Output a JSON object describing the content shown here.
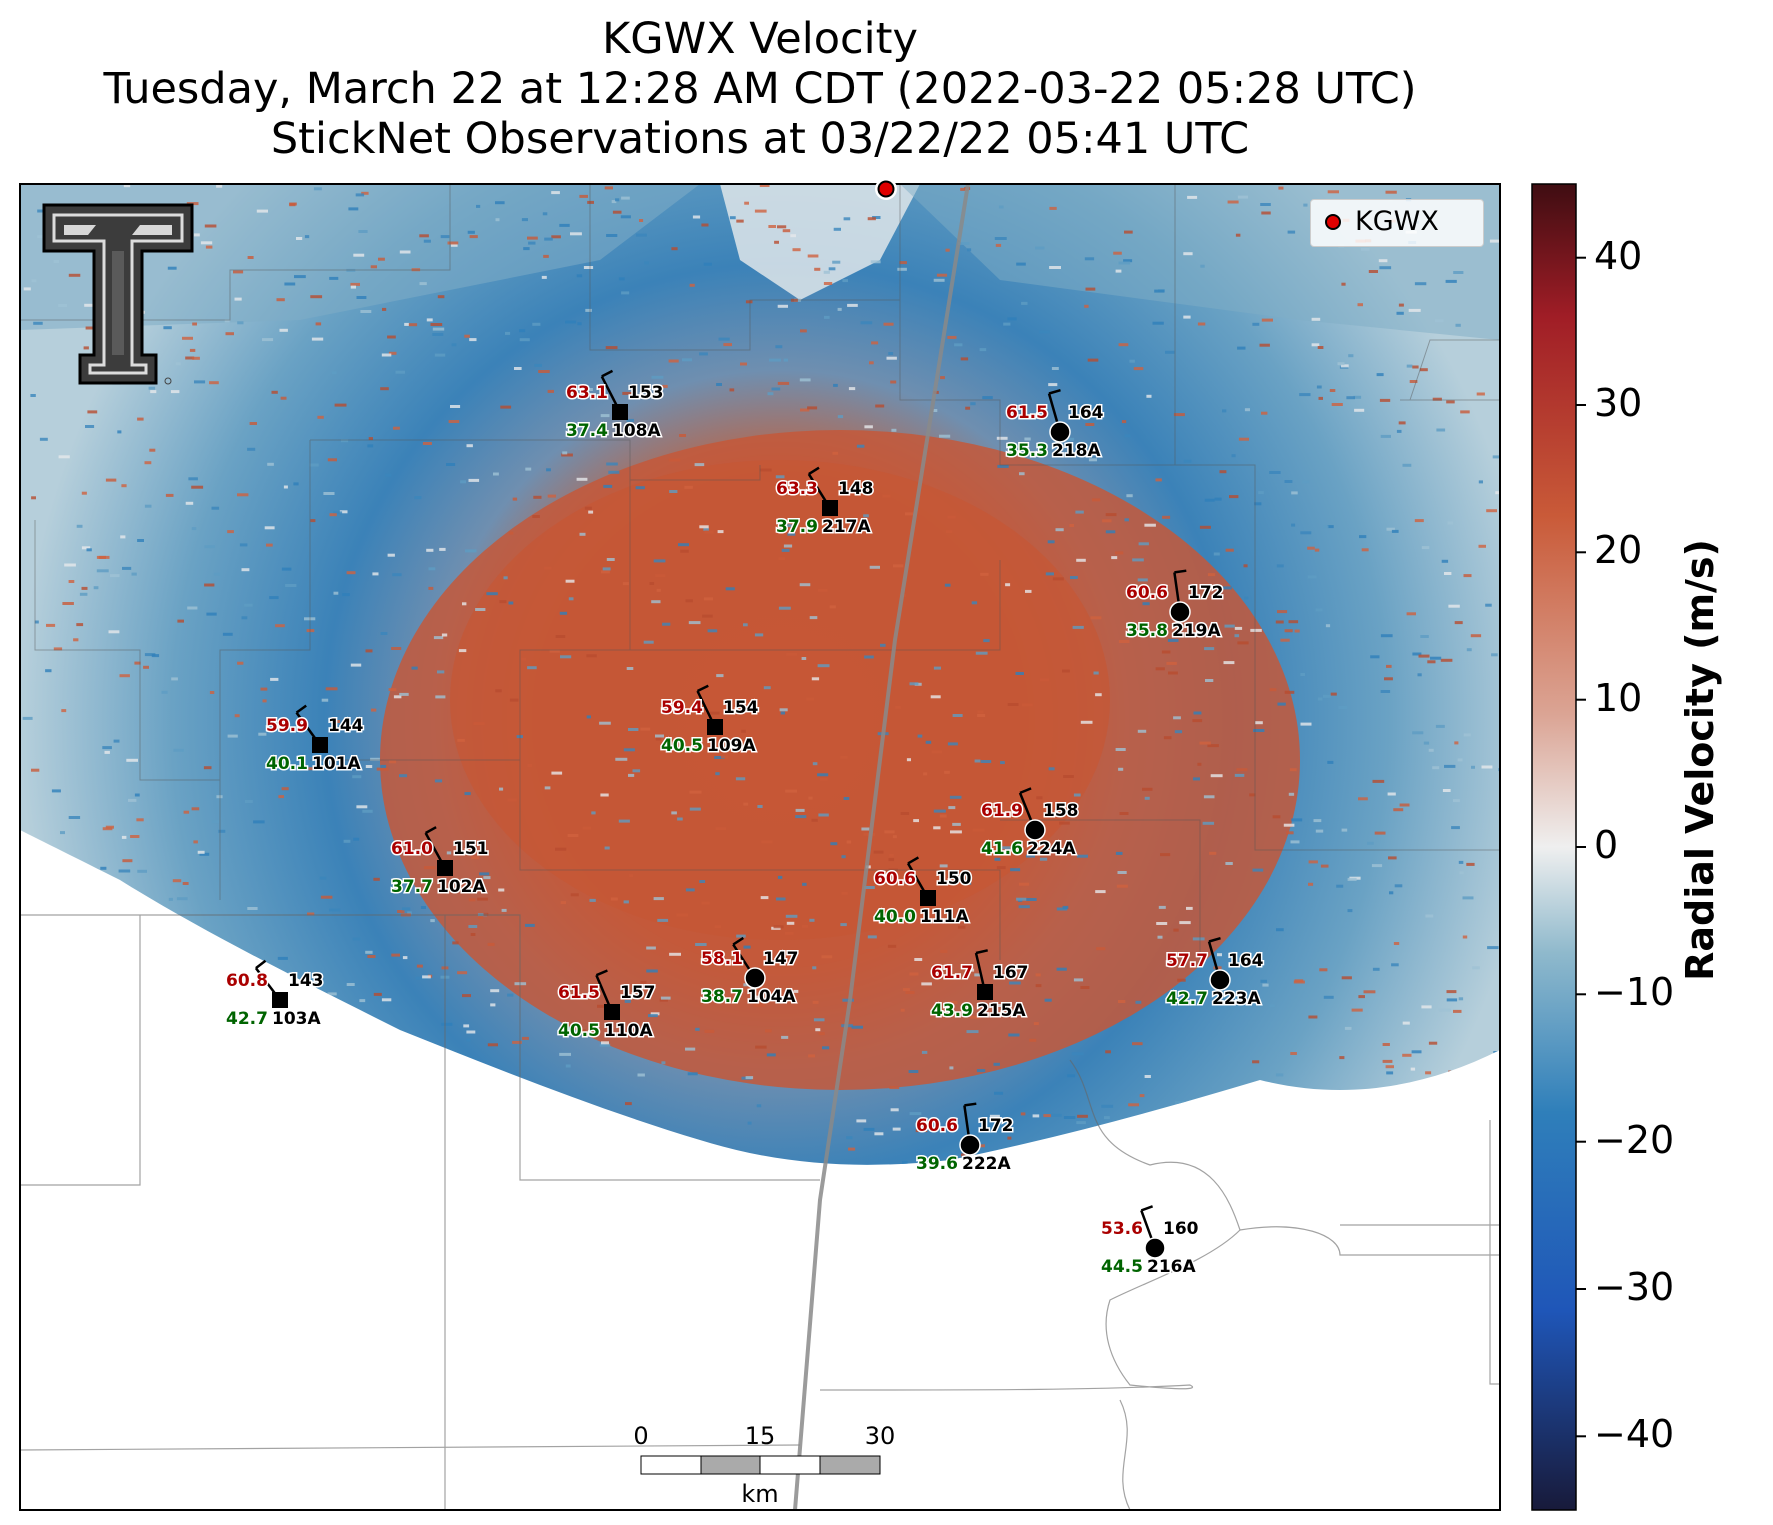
{
  "title": {
    "line1": "KGWX Velocity",
    "line2": "Tuesday, March 22 at 12:28 AM CDT (2022-03-22 05:28 UTC)",
    "line3": "StickNet Observations at 03/22/22 05:41 UTC"
  },
  "legend": {
    "label": "KGWX",
    "marker_color": "#e00000"
  },
  "colorbar": {
    "label": "Radial Velocity (m/s)",
    "range": [
      -45,
      45
    ],
    "ticks": [
      "40",
      "30",
      "20",
      "10",
      "0",
      "−10",
      "−20",
      "−30",
      "−40"
    ],
    "tick_values": [
      40,
      30,
      20,
      10,
      0,
      -10,
      -20,
      -30,
      -40
    ],
    "colors": {
      "min": "#181a3a",
      "neg_strong": "#1f56b8",
      "neg_mid": "#2f7fba",
      "neg_light": "#8fb9cc",
      "zero": "#efefef",
      "pos_light": "#dba494",
      "pos_mid": "#c95a38",
      "pos_strong": "#a01d26",
      "max": "#3f0d12"
    }
  },
  "scale_bar": {
    "ticks": [
      "0",
      "15",
      "30"
    ],
    "unit": "km"
  },
  "logo": {
    "name": "Texas Tech Double T"
  },
  "colors": {
    "temperature": "#aa0000",
    "dewpoint": "#006400",
    "station_text": "#000000",
    "radar_marker": "#e00000"
  },
  "stations": [
    {
      "id": "108A",
      "temp": "63.1",
      "dir": "153",
      "dew": "37.4",
      "marker": "square",
      "lx": 620,
      "ly": 412
    },
    {
      "id": "218A",
      "temp": "61.5",
      "dir": "164",
      "dew": "35.3",
      "marker": "circle",
      "lx": 1060,
      "ly": 432
    },
    {
      "id": "217A",
      "temp": "63.3",
      "dir": "148",
      "dew": "37.9",
      "marker": "square",
      "lx": 830,
      "ly": 508
    },
    {
      "id": "219A",
      "temp": "60.6",
      "dir": "172",
      "dew": "35.8",
      "marker": "circle",
      "lx": 1180,
      "ly": 612
    },
    {
      "id": "101A",
      "temp": "59.9",
      "dir": "144",
      "dew": "40.1",
      "marker": "square",
      "lx": 320,
      "ly": 745
    },
    {
      "id": "109A",
      "temp": "59.4",
      "dir": "154",
      "dew": "40.5",
      "marker": "square",
      "lx": 715,
      "ly": 727
    },
    {
      "id": "224A",
      "temp": "61.9",
      "dir": "158",
      "dew": "41.6",
      "marker": "circle",
      "lx": 1035,
      "ly": 830
    },
    {
      "id": "102A",
      "temp": "61.0",
      "dir": "151",
      "dew": "37.7",
      "marker": "square",
      "lx": 445,
      "ly": 868
    },
    {
      "id": "111A",
      "temp": "60.6",
      "dir": "150",
      "dew": "40.0",
      "marker": "square",
      "lx": 928,
      "ly": 898
    },
    {
      "id": "104A",
      "temp": "58.1",
      "dir": "147",
      "dew": "38.7",
      "marker": "circle",
      "lx": 755,
      "ly": 978
    },
    {
      "id": "223A",
      "temp": "57.7",
      "dir": "164",
      "dew": "42.7",
      "marker": "circle",
      "lx": 1220,
      "ly": 980
    },
    {
      "id": "215A",
      "temp": "61.7",
      "dir": "167",
      "dew": "43.9",
      "marker": "square",
      "lx": 985,
      "ly": 992
    },
    {
      "id": "103A",
      "temp": "60.8",
      "dir": "143",
      "dew": "42.7",
      "marker": "square",
      "lx": 280,
      "ly": 1000
    },
    {
      "id": "110A",
      "temp": "61.5",
      "dir": "157",
      "dew": "40.5",
      "marker": "square",
      "lx": 612,
      "ly": 1012
    },
    {
      "id": "222A",
      "temp": "60.6",
      "dir": "172",
      "dew": "39.6",
      "marker": "circle",
      "lx": 970,
      "ly": 1145
    },
    {
      "id": "216A",
      "temp": "53.6",
      "dir": "160",
      "dew": "44.5",
      "marker": "circle",
      "lx": 1155,
      "ly": 1248
    }
  ]
}
